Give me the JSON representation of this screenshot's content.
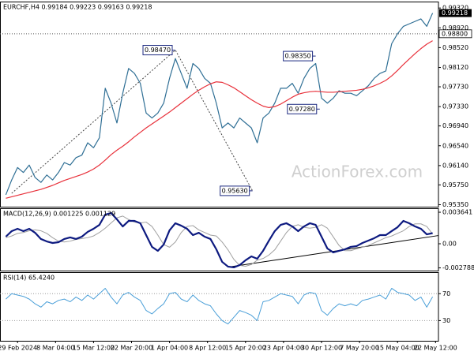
{
  "chart_data": [
    {
      "type": "line",
      "title": "EURCHF,H4  0.99184 0.99223 0.99163 0.99218",
      "watermark": "ActionForex.com",
      "x": [
        0,
        1,
        2,
        3,
        4,
        5,
        6,
        7,
        8,
        9,
        10,
        11,
        12,
        13,
        14,
        15,
        16,
        17,
        18,
        19,
        20,
        21,
        22,
        23,
        24,
        25,
        26,
        27,
        28,
        29,
        30,
        31,
        32,
        33,
        34,
        35,
        36,
        37,
        38,
        39,
        40,
        41,
        42,
        43,
        44,
        45,
        46,
        47,
        48,
        49,
        50,
        51,
        52,
        53,
        54,
        55,
        56,
        57,
        58,
        59,
        60,
        61,
        62,
        63,
        64,
        65,
        66,
        67,
        68,
        69,
        70,
        71,
        72,
        73
      ],
      "xlim": [
        -1,
        74
      ],
      "ylim": [
        0.9531,
        0.9945
      ],
      "yticks": [
        {
          "value": 0.9932,
          "label": "0.99320"
        },
        {
          "value": 0.9892,
          "label": "0.98920"
        },
        {
          "value": 0.9852,
          "label": "0.98520"
        },
        {
          "value": 0.9812,
          "label": "0.98120"
        },
        {
          "value": 0.9773,
          "label": "0.97730"
        },
        {
          "value": 0.9733,
          "label": "0.97330"
        },
        {
          "value": 0.9694,
          "label": "0.96940"
        },
        {
          "value": 0.9654,
          "label": "0.96540"
        },
        {
          "value": 0.9614,
          "label": "0.96140"
        },
        {
          "value": 0.9575,
          "label": "0.95750"
        },
        {
          "value": 0.9535,
          "label": "0.95350"
        }
      ],
      "series": [
        {
          "color": "#2f6f95",
          "values": [
            0.9555,
            0.9585,
            0.961,
            0.96,
            0.9615,
            0.959,
            0.958,
            0.9595,
            0.9585,
            0.96,
            0.962,
            0.9615,
            0.963,
            0.9635,
            0.966,
            0.965,
            0.967,
            0.977,
            0.974,
            0.97,
            0.976,
            0.981,
            0.98,
            0.978,
            0.972,
            0.971,
            0.972,
            0.974,
            0.979,
            0.983,
            0.98,
            0.977,
            0.982,
            0.981,
            0.979,
            0.978,
            0.974,
            0.969,
            0.97,
            0.969,
            0.971,
            0.97,
            0.969,
            0.966,
            0.971,
            0.972,
            0.974,
            0.977,
            0.977,
            0.978,
            0.976,
            0.979,
            0.981,
            0.982,
            0.975,
            0.974,
            0.975,
            0.9765,
            0.976,
            0.976,
            0.9755,
            0.9765,
            0.9775,
            0.979,
            0.98,
            0.9805,
            0.986,
            0.988,
            0.9895,
            0.99,
            0.9905,
            0.991,
            0.9895,
            0.99218
          ]
        },
        {
          "color": "#e8303a",
          "values": [
            0.9548,
            0.9551,
            0.9554,
            0.9557,
            0.956,
            0.9563,
            0.9566,
            0.957,
            0.9574,
            0.9579,
            0.9584,
            0.9588,
            0.9592,
            0.9596,
            0.9601,
            0.9607,
            0.9615,
            0.9625,
            0.9636,
            0.9645,
            0.9653,
            0.9662,
            0.9672,
            0.9681,
            0.969,
            0.9698,
            0.9706,
            0.9714,
            0.9722,
            0.9731,
            0.974,
            0.9749,
            0.9758,
            0.9766,
            0.9773,
            0.9779,
            0.9783,
            0.9782,
            0.9777,
            0.9771,
            0.9763,
            0.9755,
            0.9747,
            0.974,
            0.9734,
            0.9731,
            0.9733,
            0.9738,
            0.9745,
            0.9752,
            0.9758,
            0.9761,
            0.9763,
            0.9764,
            0.9763,
            0.9762,
            0.9762,
            0.9763,
            0.9764,
            0.9765,
            0.9766,
            0.9768,
            0.9771,
            0.9775,
            0.978,
            0.9786,
            0.9795,
            0.9806,
            0.9818,
            0.9829,
            0.984,
            0.985,
            0.9859,
            0.9866
          ]
        }
      ],
      "trendline": {
        "x": [
          1,
          29,
          42.2
        ],
        "values": [
          0.9558,
          0.9847,
          0.9563
        ],
        "color": "#444",
        "style": "dotted"
      },
      "annotations": [
        {
          "x": 29,
          "y": 0.9847,
          "label": "0.98470"
        },
        {
          "x": 42.2,
          "y": 0.9563,
          "label": "0.95630"
        },
        {
          "x": 53,
          "y": 0.9835,
          "label": "0.98350"
        },
        {
          "x": 53.7,
          "y": 0.9728,
          "label": "0.97280"
        }
      ],
      "hline": {
        "value": 0.988,
        "label": "0.98800"
      },
      "last": 0.99218
    },
    {
      "type": "line",
      "title": "MACD(12,26,9) 0.001225 0.001129",
      "x": [
        0,
        1,
        2,
        3,
        4,
        5,
        6,
        7,
        8,
        9,
        10,
        11,
        12,
        13,
        14,
        15,
        16,
        17,
        18,
        19,
        20,
        21,
        22,
        23,
        24,
        25,
        26,
        27,
        28,
        29,
        30,
        31,
        32,
        33,
        34,
        35,
        36,
        37,
        38,
        39,
        40,
        41,
        42,
        43,
        44,
        45,
        46,
        47,
        48,
        49,
        50,
        51,
        52,
        53,
        54,
        55,
        56,
        57,
        58,
        59,
        60,
        61,
        62,
        63,
        64,
        65,
        66,
        67,
        68,
        69,
        70,
        71,
        72,
        73
      ],
      "xlim": [
        -1,
        74
      ],
      "ylim": [
        -0.0031,
        0.0041
      ],
      "yticks": [
        0.003641,
        {
          "value": 0,
          "label": "0.00"
        },
        -0.002788
      ],
      "series": [
        {
          "color": "#a0a0a0",
          "width": 1,
          "values": [
            0.0007,
            0.0009,
            0.0012,
            0.0013,
            0.0015,
            0.0016,
            0.0015,
            0.0012,
            0.0007,
            0.0003,
            0.0002,
            0.0003,
            0.0005,
            0.0006,
            0.0007,
            0.0009,
            0.0013,
            0.0018,
            0.0024,
            0.003,
            0.0032,
            0.0028,
            0.0025,
            0.0024,
            0.0025,
            0.002,
            0.001,
            -0.0001,
            -0.0004,
            0.0002,
            0.0013,
            0.002,
            0.0021,
            0.0016,
            0.0013,
            0.001,
            0.0009,
            0.0002,
            -0.0007,
            -0.0018,
            -0.0025,
            -0.0026,
            -0.0024,
            -0.0019,
            -0.0017,
            -0.0013,
            -0.0007,
            0.0003,
            0.0013,
            0.002,
            0.0022,
            0.0019,
            0.0018,
            0.0019,
            0.0022,
            0.0018,
            0.0008,
            -0.0002,
            -0.0008,
            -0.0008,
            -0.0006,
            -0.0004,
            -0.0002,
            0.0001,
            0.0004,
            0.0007,
            0.0009,
            0.0012,
            0.0015,
            0.002,
            0.0023,
            0.0023,
            0.002,
            0.00113
          ]
        },
        {
          "color": "#0d1a80",
          "width": 2.2,
          "values": [
            0.00082,
            0.00146,
            0.00173,
            0.00146,
            0.00173,
            0.00127,
            0.00055,
            0.00027,
            9e-05,
            0.00018,
            0.00055,
            0.00073,
            0.00055,
            0.00082,
            0.00137,
            0.00173,
            0.00218,
            0.00337,
            0.00355,
            0.00282,
            0.002,
            0.00264,
            0.00264,
            0.00237,
            0.001,
            -0.00036,
            -0.00082,
            -9e-05,
            0.00155,
            0.00237,
            0.00209,
            0.00173,
            0.001,
            0.00127,
            0.00082,
            0.00055,
            -0.00064,
            -0.00209,
            -0.00264,
            -0.00273,
            -0.00246,
            -0.00191,
            -0.00146,
            -0.00173,
            -0.00082,
            0.00036,
            0.00146,
            0.00218,
            0.00237,
            0.002,
            0.00146,
            0.002,
            0.00237,
            0.00218,
            0.00082,
            -0.00055,
            -0.001,
            -0.00082,
            -0.00064,
            -0.00036,
            -0.00027,
            9e-05,
            0.00036,
            0.00064,
            0.001,
            0.001,
            0.00146,
            0.00191,
            0.00264,
            0.00237,
            0.002,
            0.00173,
            0.00109,
            0.00123
          ]
        }
      ],
      "trendline": {
        "x": [
          38,
          74
        ],
        "values": [
          -0.0027,
          0.00095
        ],
        "color": "#000",
        "style": "solid"
      }
    },
    {
      "type": "line",
      "title": "RSI(14) 65.4240",
      "x": [
        0,
        1,
        2,
        3,
        4,
        5,
        6,
        7,
        8,
        9,
        10,
        11,
        12,
        13,
        14,
        15,
        16,
        17,
        18,
        19,
        20,
        21,
        22,
        23,
        24,
        25,
        26,
        27,
        28,
        29,
        30,
        31,
        32,
        33,
        34,
        35,
        36,
        37,
        38,
        39,
        40,
        41,
        42,
        43,
        44,
        45,
        46,
        47,
        48,
        49,
        50,
        51,
        52,
        53,
        54,
        55,
        56,
        57,
        58,
        59,
        60,
        61,
        62,
        63,
        64,
        65,
        66,
        67,
        68,
        69,
        70,
        71,
        72,
        73
      ],
      "xlim": [
        -1,
        74
      ],
      "ylim": [
        0,
        102
      ],
      "yticks": [
        70,
        30
      ],
      "grid": true,
      "xticks": [
        {
          "value": 2,
          "label": "29 Feb 2024"
        },
        {
          "value": 8.5,
          "label": "8 Mar 04:00"
        },
        {
          "value": 15,
          "label": "15 Mar 12:00"
        },
        {
          "value": 21.5,
          "label": "22 Mar 20:00"
        },
        {
          "value": 28,
          "label": "1 Apr 04:00"
        },
        {
          "value": 34.5,
          "label": "8 Apr 12:00"
        },
        {
          "value": 41,
          "label": "15 Apr 20:00"
        },
        {
          "value": 47.5,
          "label": "23 Apr 04:00"
        },
        {
          "value": 54,
          "label": "30 Apr 12:00"
        },
        {
          "value": 60.5,
          "label": "7 May 20:00"
        },
        {
          "value": 67,
          "label": "15 May 04:00"
        },
        {
          "value": 73.5,
          "label": "22 May 12:00"
        }
      ],
      "series": [
        {
          "color": "#4a9fd8",
          "width": 1,
          "values": [
            62,
            70,
            68,
            66,
            62,
            55,
            50,
            58,
            55,
            60,
            62,
            58,
            65,
            60,
            68,
            62,
            70,
            78,
            65,
            55,
            68,
            72,
            65,
            60,
            45,
            40,
            48,
            55,
            70,
            72,
            62,
            58,
            68,
            60,
            55,
            52,
            40,
            30,
            25,
            35,
            45,
            42,
            38,
            30,
            58,
            60,
            65,
            70,
            68,
            66,
            55,
            68,
            72,
            70,
            45,
            38,
            48,
            55,
            52,
            55,
            52,
            60,
            62,
            65,
            68,
            62,
            78,
            72,
            70,
            68,
            60,
            65,
            50,
            65.424
          ]
        }
      ]
    }
  ]
}
